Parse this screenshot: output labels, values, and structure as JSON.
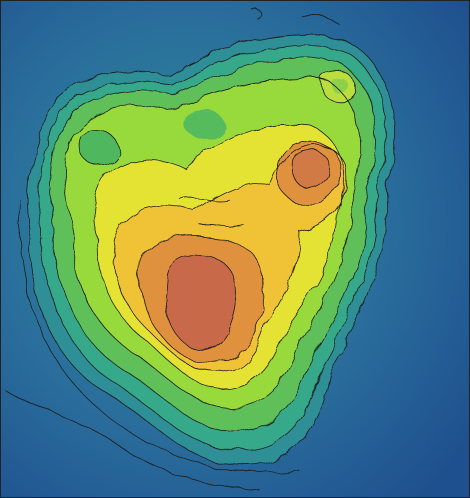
{
  "map": {
    "kind": "bathymetric-relief",
    "has_text_labels": false,
    "palette": {
      "deep": "#1e4f8e",
      "deep_mid": "#2a6e9c",
      "shelf": "#2d8f97",
      "slope": "#34a98a",
      "low": "#5fc05a",
      "lime": "#98d93a",
      "yellow": "#e4e233",
      "amber": "#f0c236",
      "orange": "#e0913e",
      "peak": "#c86a48",
      "contour": "#1a1a1a",
      "frame": "#222222"
    },
    "icons": [
      "contour-lines",
      "relief-peak-main",
      "relief-peak-secondary"
    ]
  }
}
